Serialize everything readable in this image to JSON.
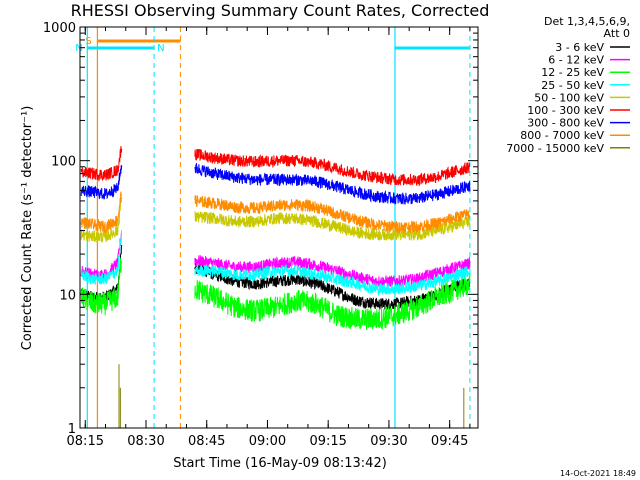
{
  "title": "RHESSI Observing Summary Count Rates, Corrected",
  "footer_stamp": "14-Oct-2021 18:49",
  "legend": {
    "header_line1": "Det 1,3,4,5,6,9,",
    "header_line2": "Att 0"
  },
  "colors": {
    "background": "#ffffff",
    "axes": "#000000",
    "saa": "#ff8c00",
    "night": "#00e5ff"
  },
  "intervals": [
    {
      "label": "S",
      "color": "#ff8c00",
      "start": "08:18:00",
      "end": "08:38:30"
    },
    {
      "label": "N",
      "color": "#00e5ff",
      "start": "08:15:30",
      "end": "08:32:00"
    },
    {
      "label": "",
      "color": "#00e5ff",
      "start": "09:31:30",
      "end": "09:50:00"
    }
  ],
  "chart_data": {
    "type": "line",
    "title": "RHESSI Observing Summary Count Rates, Corrected",
    "xlabel": "Start Time (16-May-09 08:13:42)",
    "ylabel": "Corrected Count Rate (s⁻¹ detector⁻¹)",
    "yscale": "log",
    "ylim": [
      1,
      1000
    ],
    "xlim": [
      "08:13:42",
      "09:52:00"
    ],
    "x_ticks": [
      "08:15",
      "08:30",
      "08:45",
      "09:00",
      "09:15",
      "09:30",
      "09:45"
    ],
    "y_ticks": [
      "1",
      "10",
      "100",
      "1000"
    ],
    "gap": [
      "08:24:00",
      "08:39:00"
    ],
    "x": [
      "08:14",
      "08:17",
      "08:20",
      "08:23",
      "08:24",
      "08:39",
      "08:42",
      "08:47",
      "08:52",
      "08:57",
      "09:02",
      "09:07",
      "09:12",
      "09:17",
      "09:22",
      "09:27",
      "09:32",
      "09:37",
      "09:42",
      "09:47",
      "09:50"
    ],
    "series": [
      {
        "name": "3 - 6 keV",
        "color": "#000000",
        "values": [
          10,
          9.5,
          9.5,
          11,
          22,
          null,
          16,
          14,
          12.5,
          12,
          12.5,
          13,
          12,
          10.5,
          9,
          8.5,
          8.5,
          9,
          10,
          11.5,
          12
        ]
      },
      {
        "name": "6 - 12 keV",
        "color": "#ff00ff",
        "values": [
          15,
          14,
          14,
          17,
          30,
          null,
          18,
          17,
          16,
          16,
          17,
          17.5,
          16.5,
          15,
          13.5,
          12.5,
          12.5,
          13,
          14.5,
          16,
          17
        ]
      },
      {
        "name": "12 - 25 keV",
        "color": "#00ff00",
        "values": [
          9.5,
          8.5,
          8.5,
          9.5,
          20,
          null,
          11,
          9.5,
          8,
          7.5,
          8,
          9,
          8.5,
          7,
          6.5,
          6.5,
          7,
          8,
          9.5,
          11,
          12
        ]
      },
      {
        "name": "25 - 50 keV",
        "color": "#00ffff",
        "values": [
          14,
          13,
          13,
          15,
          28,
          null,
          15,
          15,
          14,
          14,
          15,
          15,
          14,
          13,
          12,
          11,
          11,
          11.5,
          12.5,
          14,
          15
        ]
      },
      {
        "name": "50 - 100 keV",
        "color": "#c8c800",
        "values": [
          28,
          27,
          27,
          30,
          55,
          null,
          38,
          37,
          35,
          35,
          37,
          37,
          35,
          32,
          29,
          28,
          28,
          28,
          30,
          33,
          35
        ]
      },
      {
        "name": "100 - 300 keV",
        "color": "#ff0000",
        "values": [
          82,
          80,
          78,
          85,
          130,
          null,
          112,
          105,
          100,
          98,
          100,
          100,
          96,
          88,
          80,
          75,
          72,
          72,
          76,
          84,
          90
        ]
      },
      {
        "name": "300 - 800 keV",
        "color": "#0000ff",
        "values": [
          60,
          58,
          56,
          62,
          95,
          null,
          88,
          80,
          75,
          72,
          72,
          72,
          70,
          64,
          58,
          54,
          52,
          52,
          56,
          61,
          65
        ]
      },
      {
        "name": "800 - 7000 keV",
        "color": "#ff8c00",
        "values": [
          35,
          33,
          32,
          36,
          60,
          null,
          50,
          48,
          45,
          44,
          46,
          47,
          45,
          40,
          36,
          33,
          32,
          32,
          34,
          38,
          40
        ]
      },
      {
        "name": "7000 - 15000 keV",
        "color": "#808000",
        "values": [
          null,
          null,
          null,
          3,
          null,
          null,
          null,
          null,
          null,
          null,
          null,
          null,
          null,
          null,
          null,
          null,
          null,
          null,
          null,
          null,
          2
        ]
      }
    ]
  }
}
